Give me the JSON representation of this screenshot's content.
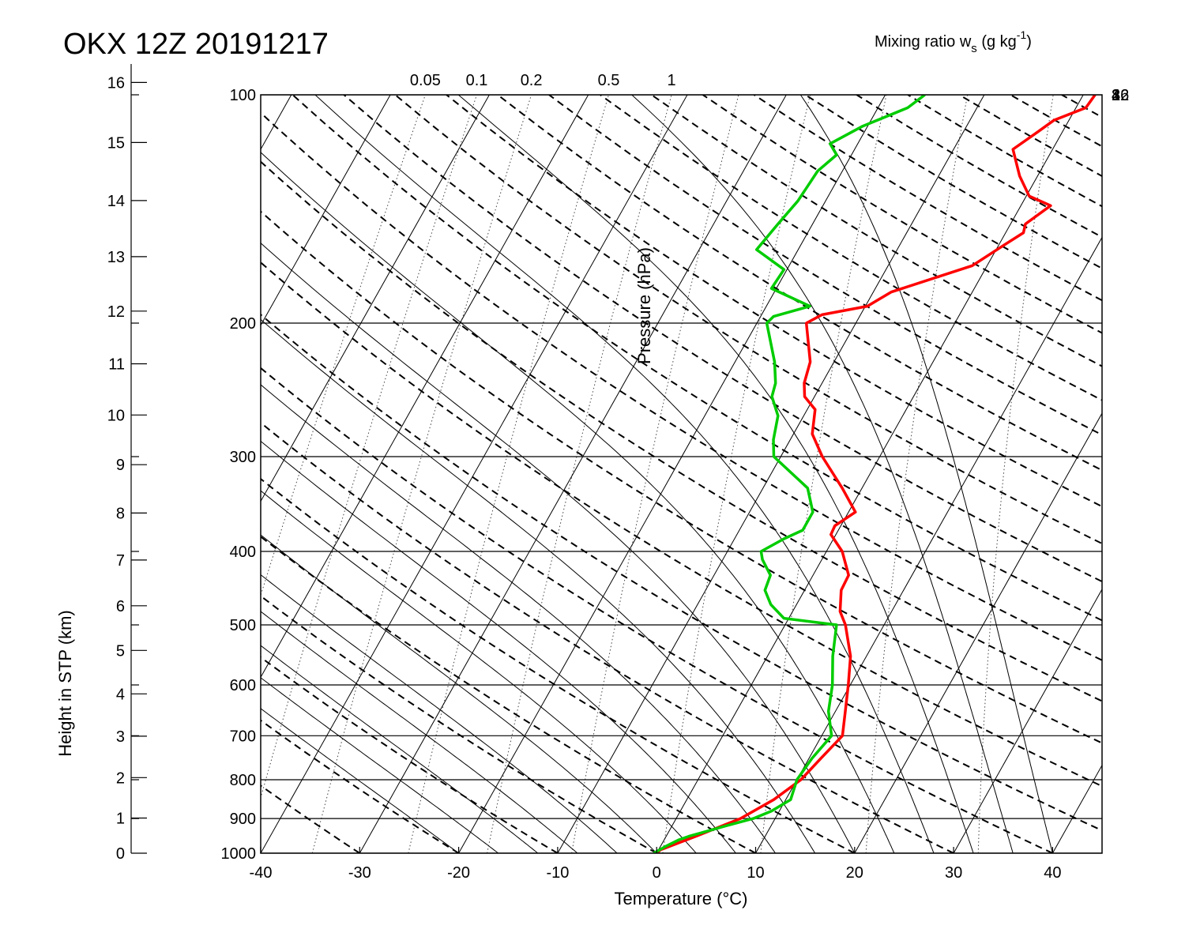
{
  "chart_data": {
    "type": "line",
    "title": "OKX 12Z 20191217",
    "xlabel": "Temperature (°C)",
    "ylabel": "Pressure (hPa)",
    "left_axis_label": "Height in STP (km)",
    "xlim": [
      -40,
      45
    ],
    "ylim": [
      1000,
      100
    ],
    "x_ticks": [
      "-40",
      "-30",
      "-20",
      "-10",
      "0",
      "10",
      "20",
      "30",
      "40"
    ],
    "pressure_ticks": [
      "100",
      "200",
      "300",
      "400",
      "500",
      "600",
      "700",
      "800",
      "900",
      "1000"
    ],
    "height_ticks": [
      "0",
      "1",
      "2",
      "3",
      "4",
      "5",
      "6",
      "7",
      "8",
      "9",
      "10",
      "11",
      "12",
      "13",
      "14",
      "15",
      "16"
    ],
    "mixing_ratio": {
      "label": "Mixing ratio w",
      "label_sub": "s",
      "label_units_open": " (g kg",
      "label_units_sup": "-1",
      "label_units_close": ")",
      "top_ticks": [
        "0.05",
        "0.1",
        "0.2",
        "0.5",
        "1"
      ],
      "right_ticks": [
        "2",
        "4",
        "8",
        "16",
        "32"
      ]
    },
    "colors": {
      "temperature": "#ff0000",
      "dewpoint": "#00cc00"
    },
    "series": [
      {
        "color": "#ff0000",
        "points": [
          [
            1000,
            0.0
          ],
          [
            990,
            0.2
          ],
          [
            950,
            3.0
          ],
          [
            900,
            6.5
          ],
          [
            850,
            8.8
          ],
          [
            800,
            10.4
          ],
          [
            750,
            11.2
          ],
          [
            700,
            12.1
          ],
          [
            650,
            11.0
          ],
          [
            600,
            9.8
          ],
          [
            550,
            8.4
          ],
          [
            500,
            6.1
          ],
          [
            480,
            4.8
          ],
          [
            450,
            3.7
          ],
          [
            430,
            3.6
          ],
          [
            400,
            1.6
          ],
          [
            380,
            -0.5
          ],
          [
            370,
            -0.6
          ],
          [
            355,
            0.7
          ],
          [
            330,
            -2.0
          ],
          [
            300,
            -5.8
          ],
          [
            280,
            -8.1
          ],
          [
            260,
            -9.2
          ],
          [
            250,
            -11.0
          ],
          [
            240,
            -11.8
          ],
          [
            225,
            -12.4
          ],
          [
            200,
            -15.0
          ],
          [
            195,
            -13.9
          ],
          [
            190,
            -9.8
          ],
          [
            182,
            -8.2
          ],
          [
            168,
            -1.5
          ],
          [
            158,
            0.5
          ],
          [
            152,
            1.8
          ],
          [
            148,
            1.5
          ],
          [
            140,
            3.0
          ],
          [
            136,
            0.3
          ],
          [
            128,
            -1.8
          ],
          [
            118,
            -4.0
          ],
          [
            112,
            -2.5
          ],
          [
            108,
            -1.5
          ],
          [
            104,
            1.0
          ],
          [
            100,
            1.2
          ]
        ]
      },
      {
        "color": "#00cc00",
        "points": [
          [
            1000,
            -0.3
          ],
          [
            980,
            0.5
          ],
          [
            960,
            1.5
          ],
          [
            950,
            2.3
          ],
          [
            920,
            5.5
          ],
          [
            900,
            7.8
          ],
          [
            880,
            9.2
          ],
          [
            850,
            10.5
          ],
          [
            800,
            10.0
          ],
          [
            750,
            10.3
          ],
          [
            700,
            11.0
          ],
          [
            650,
            9.3
          ],
          [
            600,
            8.2
          ],
          [
            550,
            6.6
          ],
          [
            500,
            5.2
          ],
          [
            490,
            -0.5
          ],
          [
            470,
            -2.6
          ],
          [
            450,
            -4.0
          ],
          [
            430,
            -4.3
          ],
          [
            410,
            -6.0
          ],
          [
            400,
            -6.6
          ],
          [
            385,
            -5.0
          ],
          [
            375,
            -3.6
          ],
          [
            355,
            -3.6
          ],
          [
            330,
            -5.5
          ],
          [
            300,
            -10.7
          ],
          [
            285,
            -11.7
          ],
          [
            265,
            -12.6
          ],
          [
            250,
            -14.3
          ],
          [
            240,
            -14.7
          ],
          [
            225,
            -16.0
          ],
          [
            200,
            -19.0
          ],
          [
            196,
            -18.7
          ],
          [
            190,
            -15.6
          ],
          [
            180,
            -20.5
          ],
          [
            170,
            -20.3
          ],
          [
            160,
            -24.2
          ],
          [
            148,
            -23.5
          ],
          [
            138,
            -22.8
          ],
          [
            126,
            -22.5
          ],
          [
            120,
            -21.5
          ],
          [
            116,
            -22.8
          ],
          [
            110,
            -20.5
          ],
          [
            104,
            -17.0
          ],
          [
            100,
            -16.0
          ]
        ]
      }
    ]
  }
}
